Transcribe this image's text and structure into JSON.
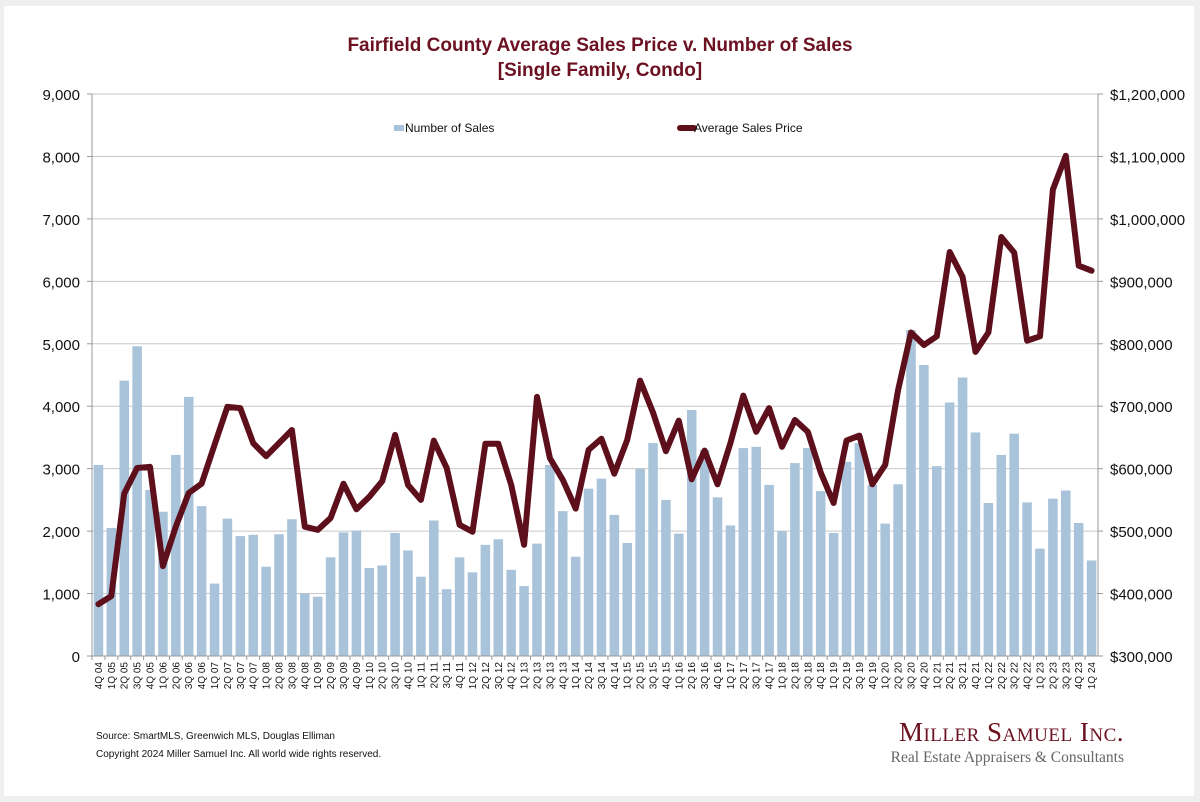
{
  "chart_data": {
    "type": "bar+line",
    "title": "Fairfield County Average Sales Price v. Number of Sales",
    "subtitle": "[Single Family, Condo]",
    "xlabel": "",
    "ylabel_left": "",
    "ylabel_right": "",
    "ylim_left": [
      0,
      9000
    ],
    "yticks_left": [
      "0",
      "1,000",
      "2,000",
      "3,000",
      "4,000",
      "5,000",
      "6,000",
      "7,000",
      "8,000",
      "9,000"
    ],
    "ylim_right": [
      300000,
      1200000
    ],
    "yticks_right": [
      "$300,000",
      "$400,000",
      "$500,000",
      "$600,000",
      "$700,000",
      "$800,000",
      "$900,000",
      "$1,000,000",
      "$1,100,000",
      "$1,200,000"
    ],
    "grid": true,
    "legend_position": "top-center",
    "categories": [
      "4Q 04",
      "1Q 05",
      "2Q 05",
      "3Q 05",
      "4Q 05",
      "1Q 06",
      "2Q 06",
      "3Q 06",
      "4Q 06",
      "1Q 07",
      "2Q 07",
      "3Q 07",
      "4Q 07",
      "1Q 08",
      "2Q 08",
      "3Q 08",
      "4Q 08",
      "1Q 09",
      "2Q 09",
      "3Q 09",
      "4Q 09",
      "1Q 10",
      "2Q 10",
      "3Q 10",
      "4Q 10",
      "1Q 11",
      "2Q 11",
      "3Q 11",
      "4Q 11",
      "1Q 12",
      "2Q 12",
      "3Q 12",
      "4Q 12",
      "1Q 13",
      "2Q 13",
      "3Q 13",
      "4Q 13",
      "1Q 14",
      "2Q 14",
      "3Q 14",
      "4Q 14",
      "1Q 15",
      "2Q 15",
      "3Q 15",
      "4Q 15",
      "1Q 16",
      "2Q 16",
      "3Q 16",
      "4Q 16",
      "1Q 17",
      "2Q 17",
      "3Q 17",
      "4Q 17",
      "1Q 18",
      "2Q 18",
      "3Q 18",
      "4Q 18",
      "1Q 19",
      "2Q 19",
      "3Q 19",
      "4Q 19",
      "1Q 20",
      "2Q 20",
      "3Q 20",
      "4Q 20",
      "1Q 21",
      "2Q 21",
      "3Q 21",
      "4Q 21",
      "1Q 22",
      "2Q 22",
      "3Q 22",
      "4Q 22",
      "1Q 23",
      "2Q 23",
      "3Q 23",
      "4Q 23",
      "1Q 24"
    ],
    "series": [
      {
        "name": "Number of Sales",
        "type": "bar",
        "axis": "left",
        "color": "#a9c4da",
        "values": [
          3060,
          2050,
          4410,
          4960,
          2660,
          2310,
          3220,
          4150,
          2400,
          1160,
          2200,
          1920,
          1940,
          1430,
          1950,
          2190,
          1000,
          950,
          1580,
          1980,
          2010,
          1410,
          1450,
          1970,
          1690,
          1270,
          2170,
          1070,
          1580,
          1340,
          1780,
          1870,
          1380,
          1120,
          1800,
          3060,
          2320,
          1590,
          2680,
          2840,
          2260,
          1810,
          3000,
          3410,
          2500,
          1960,
          3940,
          3300,
          2540,
          2090,
          3330,
          3350,
          2740,
          2000,
          3090,
          3330,
          2640,
          1970,
          3110,
          3410,
          2740,
          2120,
          2750,
          5220,
          4660,
          3040,
          4060,
          4460,
          3580,
          2450,
          3220,
          3560,
          2460,
          1720,
          2520,
          2650,
          2130,
          1530
        ]
      },
      {
        "name": "Average Sales Price",
        "type": "line",
        "axis": "right",
        "color": "#5e0f1c",
        "values": [
          383000,
          396000,
          560000,
          601000,
          603000,
          444000,
          507000,
          561000,
          576000,
          638000,
          699000,
          697000,
          641000,
          620000,
          641000,
          662000,
          507000,
          502000,
          521000,
          576000,
          535000,
          555000,
          580000,
          654000,
          574000,
          550000,
          645000,
          601000,
          510000,
          499000,
          640000,
          640000,
          574000,
          478000,
          715000,
          617000,
          582000,
          536000,
          630000,
          648000,
          592000,
          646000,
          741000,
          690000,
          628000,
          677000,
          583000,
          629000,
          575000,
          641000,
          717000,
          659000,
          697000,
          635000,
          678000,
          659000,
          594000,
          545000,
          645000,
          653000,
          575000,
          606000,
          726000,
          818000,
          798000,
          812000,
          947000,
          907000,
          787000,
          818000,
          971000,
          946000,
          805000,
          812000,
          1047000,
          1101000,
          925000,
          917000
        ]
      }
    ]
  },
  "footer": {
    "source": "Source: SmartMLS, Greenwich MLS, Douglas Elliman",
    "copyright": "Copyright 2024 Miller Samuel Inc.  All world wide rights reserved."
  },
  "brand": {
    "name": "Miller Samuel Inc.",
    "tagline": "Real Estate Appraisers & Consultants"
  }
}
